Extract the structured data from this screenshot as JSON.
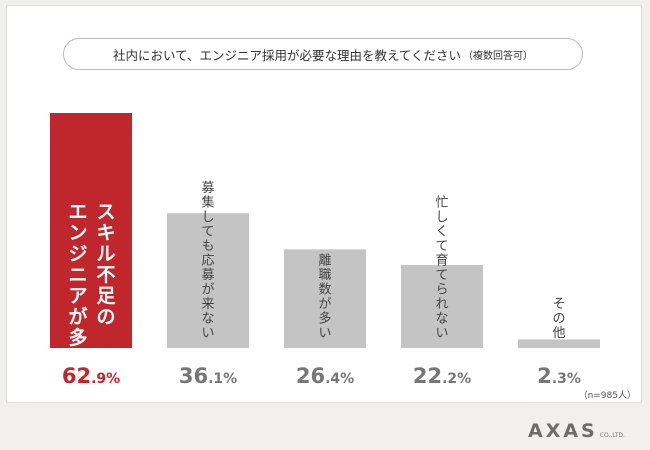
{
  "header": {
    "title": "社内において、エンジニア採用が必要な理由を教えてください",
    "title_suffix": "（複数回答可）"
  },
  "chart_data": {
    "type": "bar",
    "title": "社内において、エンジニア採用が必要な理由を教えてください（複数回答可）",
    "categories": [
      "スキル不足のエンジニアが多い",
      "募集しても応募が来ない",
      "離職数が多い",
      "忙しくて育てられない",
      "その他"
    ],
    "values": [
      62.9,
      36.1,
      26.4,
      22.2,
      2.3
    ],
    "value_labels": [
      "62.9%",
      "36.1%",
      "26.4%",
      "22.2%",
      "2.3%"
    ],
    "ylim": [
      0,
      62.9
    ],
    "colors": [
      "#c0272d",
      "#c4c4c4",
      "#c4c4c4",
      "#c4c4c4",
      "#c4c4c4"
    ],
    "grid": false
  },
  "footer": {
    "sample_note": "（n=985人）",
    "logo_main": "AXAS",
    "logo_sub": "CO.,LTD."
  }
}
